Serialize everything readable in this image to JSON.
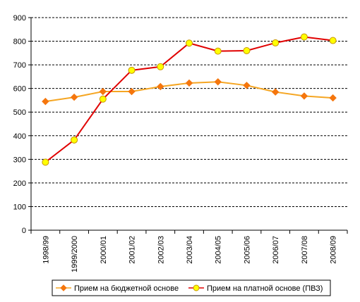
{
  "chart_data": {
    "type": "line",
    "categories": [
      "1998/99",
      "1999/2000",
      "2000/01",
      "2001/02",
      "2002/03",
      "2003/04",
      "2004/05",
      "2005/06",
      "2006/07",
      "2007/08",
      "2008/09"
    ],
    "series": [
      {
        "name": "Прием на бюджетной основе",
        "values": [
          545,
          563,
          587,
          587,
          608,
          623,
          628,
          613,
          585,
          568,
          560
        ],
        "line_color": "#F5A623",
        "marker": "diamond",
        "marker_fill": "#F5760D",
        "marker_stroke": "#F5760D"
      },
      {
        "name": "Прием на платной основе (ПВЗ)",
        "values": [
          288,
          382,
          555,
          677,
          692,
          792,
          758,
          760,
          793,
          818,
          803
        ],
        "line_color": "#E00000",
        "marker": "circle",
        "marker_fill": "#FFFF00",
        "marker_stroke": "#C89600"
      }
    ],
    "ylim": [
      0,
      900
    ],
    "yticks": [
      0,
      100,
      200,
      300,
      400,
      500,
      600,
      700,
      800,
      900
    ],
    "grid": "horizontal dashed",
    "legend_position": "bottom"
  }
}
